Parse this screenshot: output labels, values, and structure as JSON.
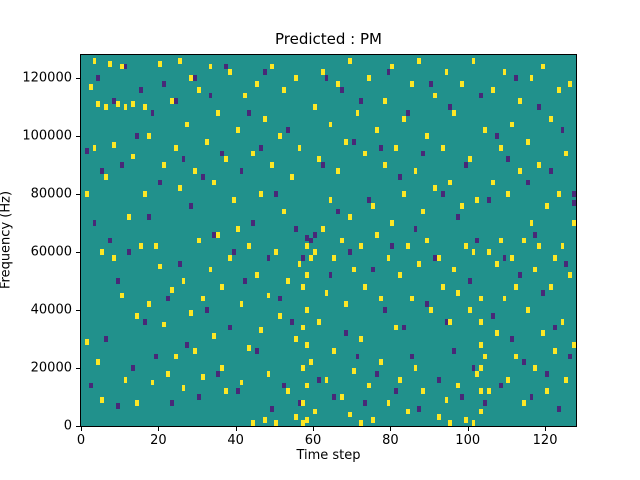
{
  "chart_data": {
    "type": "heatmap",
    "title": "Predicted : PM",
    "xlabel": "Time step",
    "ylabel": "Frequency (Hz)",
    "xlim": [
      0,
      128
    ],
    "ylim": [
      0,
      128000
    ],
    "x_ticks": [
      0,
      20,
      40,
      60,
      80,
      100,
      120
    ],
    "y_ticks": [
      0,
      20000,
      40000,
      60000,
      80000,
      100000,
      120000
    ],
    "colormap": "viridis",
    "legend": "none",
    "grid": false,
    "colors": {
      "background_mid": "#21918c",
      "high": "#fde725",
      "low": "#482878"
    },
    "value_levels": {
      "low": 0,
      "mid": 0.5,
      "high": 1
    },
    "high_points": [
      [
        1,
        80000
      ],
      [
        1,
        29000
      ],
      [
        2,
        117000
      ],
      [
        3,
        126000
      ],
      [
        3,
        96000
      ],
      [
        4,
        111000
      ],
      [
        4,
        22000
      ],
      [
        5,
        60000
      ],
      [
        5,
        9000
      ],
      [
        6,
        110000
      ],
      [
        6,
        86000
      ],
      [
        7,
        125000
      ],
      [
        8,
        97000
      ],
      [
        8,
        58000
      ],
      [
        9,
        111000
      ],
      [
        10,
        124000
      ],
      [
        10,
        45000
      ],
      [
        11,
        110000
      ],
      [
        11,
        16000
      ],
      [
        12,
        72000
      ],
      [
        13,
        111000
      ],
      [
        13,
        93000
      ],
      [
        14,
        38000
      ],
      [
        14,
        8000
      ],
      [
        15,
        62000
      ],
      [
        16,
        110000
      ],
      [
        16,
        80000
      ],
      [
        17,
        100000
      ],
      [
        17,
        42000
      ],
      [
        18,
        15000
      ],
      [
        19,
        62000
      ],
      [
        20,
        125000
      ],
      [
        20,
        55000
      ],
      [
        21,
        90000
      ],
      [
        21,
        35000
      ],
      [
        22,
        18000
      ],
      [
        23,
        112000
      ],
      [
        23,
        47000
      ],
      [
        24,
        96000
      ],
      [
        24,
        24000
      ],
      [
        25,
        126000
      ],
      [
        25,
        82000
      ],
      [
        26,
        50000
      ],
      [
        26,
        13000
      ],
      [
        27,
        104000
      ],
      [
        28,
        120000
      ],
      [
        28,
        39000
      ],
      [
        29,
        88000
      ],
      [
        29,
        26000
      ],
      [
        30,
        116000
      ],
      [
        30,
        64000
      ],
      [
        31,
        44000
      ],
      [
        31,
        17000
      ],
      [
        32,
        98000
      ],
      [
        33,
        124000
      ],
      [
        33,
        54000
      ],
      [
        34,
        84000
      ],
      [
        34,
        31000
      ],
      [
        35,
        108000
      ],
      [
        35,
        66000
      ],
      [
        36,
        48000
      ],
      [
        36,
        20000
      ],
      [
        37,
        92000
      ],
      [
        37,
        12000
      ],
      [
        38,
        122000
      ],
      [
        38,
        58000
      ],
      [
        39,
        78000
      ],
      [
        40,
        102000
      ],
      [
        40,
        68000
      ],
      [
        41,
        42000
      ],
      [
        41,
        15000
      ],
      [
        42,
        114000
      ],
      [
        43,
        62000
      ],
      [
        43,
        27000
      ],
      [
        44,
        94000
      ],
      [
        44,
        1000
      ],
      [
        45,
        118000
      ],
      [
        45,
        52000
      ],
      [
        46,
        80000
      ],
      [
        46,
        33000
      ],
      [
        47,
        106000
      ],
      [
        47,
        2000
      ],
      [
        48,
        45000
      ],
      [
        48,
        18000
      ],
      [
        49,
        124000
      ],
      [
        49,
        90000
      ],
      [
        50,
        60000
      ],
      [
        50,
        1000
      ],
      [
        51,
        100000
      ],
      [
        51,
        38000
      ],
      [
        52,
        116000
      ],
      [
        52,
        74000
      ],
      [
        53,
        50000
      ],
      [
        53,
        12000
      ],
      [
        54,
        86000
      ],
      [
        55,
        120000
      ],
      [
        55,
        30000
      ],
      [
        55,
        3000
      ],
      [
        56,
        96000
      ],
      [
        56,
        56000
      ],
      [
        57,
        48000
      ],
      [
        57,
        34000
      ],
      [
        57,
        20000
      ],
      [
        57,
        8000
      ],
      [
        57,
        1000
      ],
      [
        58,
        62000
      ],
      [
        58,
        52000
      ],
      [
        58,
        40000
      ],
      [
        58,
        28000
      ],
      [
        58,
        14000
      ],
      [
        58,
        2000
      ],
      [
        59,
        58000
      ],
      [
        59,
        22000
      ],
      [
        60,
        110000
      ],
      [
        60,
        60000
      ],
      [
        60,
        5000
      ],
      [
        61,
        92000
      ],
      [
        61,
        36000
      ],
      [
        62,
        122000
      ],
      [
        62,
        68000
      ],
      [
        63,
        46000
      ],
      [
        63,
        16000
      ],
      [
        64,
        104000
      ],
      [
        64,
        78000
      ],
      [
        65,
        58000
      ],
      [
        65,
        26000
      ],
      [
        66,
        118000
      ],
      [
        66,
        88000
      ],
      [
        67,
        64000
      ],
      [
        67,
        10000
      ],
      [
        68,
        98000
      ],
      [
        68,
        42000
      ],
      [
        69,
        126000
      ],
      [
        69,
        72000
      ],
      [
        69,
        4000
      ],
      [
        70,
        54000
      ],
      [
        70,
        19000
      ],
      [
        71,
        108000
      ],
      [
        72,
        62000
      ],
      [
        72,
        30000
      ],
      [
        72,
        1000
      ],
      [
        73,
        94000
      ],
      [
        73,
        48000
      ],
      [
        74,
        120000
      ],
      [
        74,
        14000
      ],
      [
        75,
        76000
      ],
      [
        75,
        2000
      ],
      [
        76,
        102000
      ],
      [
        76,
        66000
      ],
      [
        77,
        44000
      ],
      [
        77,
        22000
      ],
      [
        78,
        112000
      ],
      [
        78,
        90000
      ],
      [
        79,
        58000
      ],
      [
        79,
        8000
      ],
      [
        80,
        124000
      ],
      [
        80,
        70000
      ],
      [
        81,
        96000
      ],
      [
        81,
        34000
      ],
      [
        82,
        52000
      ],
      [
        82,
        16000
      ],
      [
        83,
        106000
      ],
      [
        83,
        80000
      ],
      [
        84,
        62000
      ],
      [
        84,
        5000
      ],
      [
        85,
        118000
      ],
      [
        85,
        44000
      ],
      [
        86,
        88000
      ],
      [
        86,
        20000
      ],
      [
        87,
        126000
      ],
      [
        87,
        56000
      ],
      [
        88,
        74000
      ],
      [
        88,
        12000
      ],
      [
        89,
        100000
      ],
      [
        89,
        64000
      ],
      [
        90,
        40000
      ],
      [
        91,
        114000
      ],
      [
        91,
        82000
      ],
      [
        92,
        58000
      ],
      [
        92,
        3000
      ],
      [
        93,
        96000
      ],
      [
        93,
        48000
      ],
      [
        94,
        122000
      ],
      [
        94,
        9000
      ],
      [
        95,
        84000
      ],
      [
        95,
        36000
      ],
      [
        95,
        1000
      ],
      [
        96,
        108000
      ],
      [
        96,
        54000
      ],
      [
        97,
        46000
      ],
      [
        97,
        14000
      ],
      [
        98,
        118000
      ],
      [
        98,
        76000
      ],
      [
        99,
        62000
      ],
      [
        99,
        2000
      ],
      [
        100,
        92000
      ],
      [
        100,
        40000
      ],
      [
        101,
        126000
      ],
      [
        101,
        60000
      ],
      [
        101,
        1000
      ],
      [
        102,
        78000
      ],
      [
        102,
        18000
      ],
      [
        103,
        44000
      ],
      [
        103,
        36000
      ],
      [
        103,
        28000
      ],
      [
        103,
        20000
      ],
      [
        103,
        12000
      ],
      [
        103,
        5000
      ],
      [
        104,
        102000
      ],
      [
        104,
        24000
      ],
      [
        105,
        60000
      ],
      [
        105,
        12000
      ],
      [
        106,
        116000
      ],
      [
        106,
        84000
      ],
      [
        107,
        56000
      ],
      [
        107,
        32000
      ],
      [
        108,
        96000
      ],
      [
        108,
        64000
      ],
      [
        109,
        122000
      ],
      [
        109,
        44000
      ],
      [
        110,
        80000
      ],
      [
        110,
        16000
      ],
      [
        111,
        104000
      ],
      [
        111,
        58000
      ],
      [
        112,
        48000
      ],
      [
        112,
        24000
      ],
      [
        113,
        112000
      ],
      [
        113,
        88000
      ],
      [
        114,
        64000
      ],
      [
        114,
        8000
      ],
      [
        115,
        98000
      ],
      [
        115,
        40000
      ],
      [
        116,
        120000
      ],
      [
        116,
        70000
      ],
      [
        117,
        54000
      ],
      [
        117,
        20000
      ],
      [
        118,
        90000
      ],
      [
        118,
        62000
      ],
      [
        119,
        124000
      ],
      [
        119,
        32000
      ],
      [
        120,
        76000
      ],
      [
        120,
        12000
      ],
      [
        121,
        106000
      ],
      [
        121,
        48000
      ],
      [
        122,
        58000
      ],
      [
        122,
        26000
      ],
      [
        123,
        116000
      ],
      [
        123,
        80000
      ],
      [
        124,
        62000
      ],
      [
        124,
        36000
      ],
      [
        125,
        94000
      ],
      [
        125,
        16000
      ],
      [
        126,
        118000
      ],
      [
        126,
        52000
      ],
      [
        127,
        70000
      ],
      [
        127,
        28000
      ]
    ],
    "low_points": [
      [
        1,
        95000
      ],
      [
        2,
        14000
      ],
      [
        3,
        70000
      ],
      [
        4,
        120000
      ],
      [
        5,
        88000
      ],
      [
        6,
        30000
      ],
      [
        7,
        64000
      ],
      [
        8,
        112000
      ],
      [
        9,
        50000
      ],
      [
        9,
        7000
      ],
      [
        10,
        90000
      ],
      [
        11,
        124000
      ],
      [
        12,
        60000
      ],
      [
        13,
        20000
      ],
      [
        14,
        100000
      ],
      [
        15,
        116000
      ],
      [
        16,
        36000
      ],
      [
        17,
        72000
      ],
      [
        18,
        108000
      ],
      [
        19,
        24000
      ],
      [
        20,
        84000
      ],
      [
        21,
        118000
      ],
      [
        22,
        44000
      ],
      [
        23,
        8000
      ],
      [
        24,
        112000
      ],
      [
        25,
        56000
      ],
      [
        26,
        92000
      ],
      [
        27,
        28000
      ],
      [
        28,
        76000
      ],
      [
        29,
        120000
      ],
      [
        30,
        10000
      ],
      [
        31,
        86000
      ],
      [
        32,
        40000
      ],
      [
        33,
        114000
      ],
      [
        34,
        66000
      ],
      [
        35,
        18000
      ],
      [
        36,
        94000
      ],
      [
        37,
        124000
      ],
      [
        38,
        34000
      ],
      [
        39,
        60000
      ],
      [
        40,
        12000
      ],
      [
        41,
        88000
      ],
      [
        42,
        50000
      ],
      [
        43,
        108000
      ],
      [
        44,
        70000
      ],
      [
        45,
        26000
      ],
      [
        46,
        96000
      ],
      [
        47,
        122000
      ],
      [
        48,
        58000
      ],
      [
        49,
        6000
      ],
      [
        50,
        80000
      ],
      [
        51,
        44000
      ],
      [
        52,
        14000
      ],
      [
        53,
        102000
      ],
      [
        54,
        36000
      ],
      [
        55,
        68000
      ],
      [
        56,
        8000
      ],
      [
        57,
        58000
      ],
      [
        58,
        65000
      ],
      [
        59,
        64000
      ],
      [
        60,
        66000
      ],
      [
        61,
        16000
      ],
      [
        62,
        90000
      ],
      [
        63,
        120000
      ],
      [
        64,
        52000
      ],
      [
        65,
        10000
      ],
      [
        66,
        74000
      ],
      [
        67,
        116000
      ],
      [
        68,
        32000
      ],
      [
        69,
        60000
      ],
      [
        70,
        98000
      ],
      [
        71,
        24000
      ],
      [
        72,
        112000
      ],
      [
        73,
        8000
      ],
      [
        74,
        78000
      ],
      [
        75,
        54000
      ],
      [
        76,
        18000
      ],
      [
        77,
        96000
      ],
      [
        78,
        40000
      ],
      [
        79,
        122000
      ],
      [
        80,
        62000
      ],
      [
        81,
        12000
      ],
      [
        82,
        86000
      ],
      [
        83,
        34000
      ],
      [
        84,
        108000
      ],
      [
        85,
        24000
      ],
      [
        86,
        68000
      ],
      [
        87,
        6000
      ],
      [
        88,
        94000
      ],
      [
        89,
        42000
      ],
      [
        90,
        118000
      ],
      [
        91,
        58000
      ],
      [
        92,
        16000
      ],
      [
        93,
        80000
      ],
      [
        94,
        36000
      ],
      [
        95,
        110000
      ],
      [
        96,
        26000
      ],
      [
        97,
        72000
      ],
      [
        98,
        10000
      ],
      [
        99,
        90000
      ],
      [
        100,
        50000
      ],
      [
        101,
        20000
      ],
      [
        102,
        64000
      ],
      [
        103,
        114000
      ],
      [
        104,
        8000
      ],
      [
        105,
        78000
      ],
      [
        106,
        38000
      ],
      [
        107,
        100000
      ],
      [
        108,
        14000
      ],
      [
        109,
        58000
      ],
      [
        110,
        92000
      ],
      [
        111,
        30000
      ],
      [
        112,
        120000
      ],
      [
        113,
        52000
      ],
      [
        114,
        22000
      ],
      [
        115,
        84000
      ],
      [
        116,
        10000
      ],
      [
        117,
        66000
      ],
      [
        118,
        110000
      ],
      [
        119,
        46000
      ],
      [
        120,
        18000
      ],
      [
        121,
        88000
      ],
      [
        122,
        34000
      ],
      [
        123,
        6000
      ],
      [
        124,
        102000
      ],
      [
        125,
        56000
      ],
      [
        126,
        24000
      ],
      [
        127,
        80000
      ],
      [
        127,
        77000
      ]
    ]
  }
}
